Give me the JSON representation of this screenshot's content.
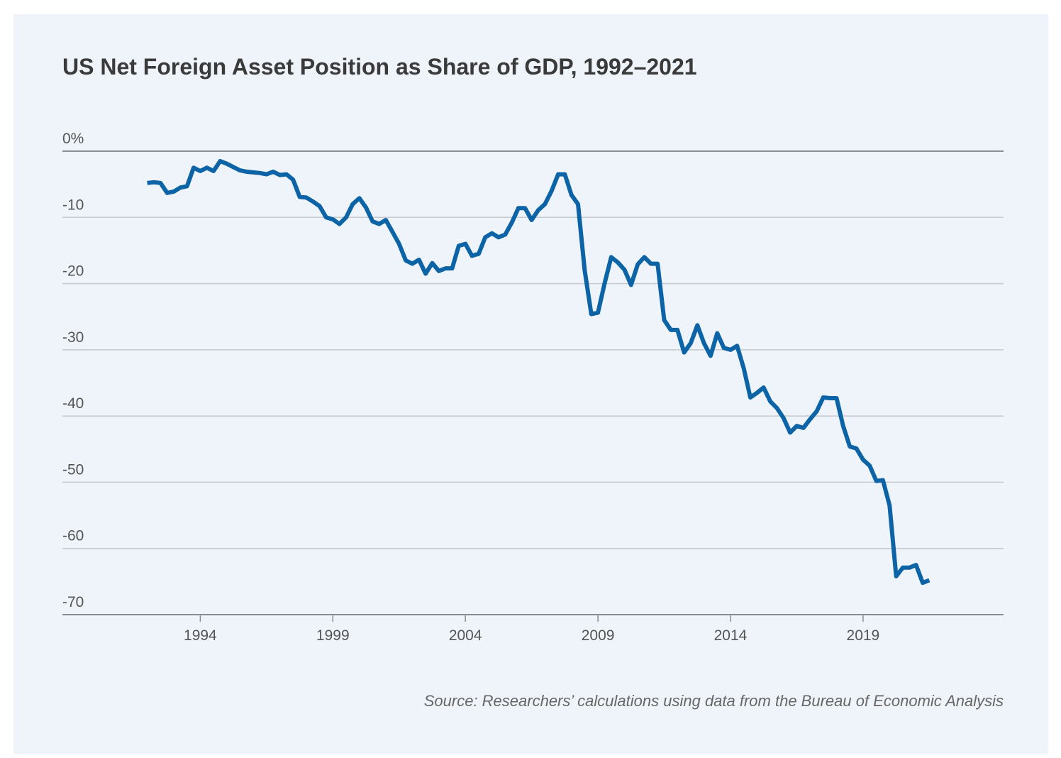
{
  "chart_data": {
    "type": "line",
    "title": "US Net Foreign Asset Position as Share of GDP, 1992–2021",
    "source": "Source: Researchers’ calculations using data from the Bureau of Economic Analysis",
    "x": [
      1992,
      1992.25,
      1992.5,
      1992.75,
      1993,
      1993.25,
      1993.5,
      1993.75,
      1994,
      1994.25,
      1994.5,
      1994.75,
      1995,
      1995.25,
      1995.5,
      1995.75,
      1996,
      1996.25,
      1996.5,
      1996.75,
      1997,
      1997.25,
      1997.5,
      1997.75,
      1998,
      1998.25,
      1998.5,
      1998.75,
      1999,
      1999.25,
      1999.5,
      1999.75,
      2000,
      2000.25,
      2000.5,
      2000.75,
      2001,
      2001.25,
      2001.5,
      2001.75,
      2002,
      2002.25,
      2002.5,
      2002.75,
      2003,
      2003.25,
      2003.5,
      2003.75,
      2004,
      2004.25,
      2004.5,
      2004.75,
      2005,
      2005.25,
      2005.5,
      2005.75,
      2006,
      2006.25,
      2006.5,
      2006.75,
      2007,
      2007.25,
      2007.5,
      2007.75,
      2008,
      2008.25,
      2008.5,
      2008.75,
      2009,
      2009.25,
      2009.5,
      2009.75,
      2010,
      2010.25,
      2010.5,
      2010.75,
      2011,
      2011.25,
      2011.5,
      2011.75,
      2012,
      2012.25,
      2012.5,
      2012.75,
      2013,
      2013.25,
      2013.5,
      2013.75,
      2014,
      2014.25,
      2014.5,
      2014.75,
      2015,
      2015.25,
      2015.5,
      2015.75,
      2016,
      2016.25,
      2016.5,
      2016.75,
      2017,
      2017.25,
      2017.5,
      2017.75,
      2018,
      2018.25,
      2018.5,
      2018.75,
      2019,
      2019.25,
      2019.5,
      2019.75,
      2020,
      2020.25,
      2020.5,
      2020.75,
      2021,
      2021.25,
      2021.5
    ],
    "series": [
      {
        "color": "#0c64a6",
        "values": [
          -4.8,
          -4.7,
          -4.8,
          -6.3,
          -6.1,
          -5.5,
          -5.3,
          -2.5,
          -3.0,
          -2.5,
          -3.0,
          -1.5,
          -1.9,
          -2.4,
          -2.9,
          -3.1,
          -3.2,
          -3.3,
          -3.5,
          -3.1,
          -3.6,
          -3.5,
          -4.3,
          -6.9,
          -7.0,
          -7.6,
          -8.3,
          -10.0,
          -10.3,
          -11.0,
          -10.0,
          -8.0,
          -7.1,
          -8.5,
          -10.6,
          -11.0,
          -10.4,
          -12.2,
          -14.0,
          -16.5,
          -17.0,
          -16.4,
          -18.5,
          -16.9,
          -18.1,
          -17.7,
          -17.7,
          -14.3,
          -14.0,
          -15.8,
          -15.5,
          -13.0,
          -12.4,
          -13.0,
          -12.6,
          -10.8,
          -8.6,
          -8.6,
          -10.4,
          -8.9,
          -8.0,
          -6.0,
          -3.5,
          -3.5,
          -6.6,
          -8.0,
          -18.0,
          -24.6,
          -24.4,
          -20.0,
          -16.0,
          -16.8,
          -17.9,
          -20.2,
          -17.1,
          -16.0,
          -17.0,
          -17.0,
          -25.5,
          -27.0,
          -27.0,
          -30.4,
          -29.0,
          -26.3,
          -29.0,
          -30.9,
          -27.5,
          -29.7,
          -30.0,
          -29.4,
          -32.8,
          -37.2,
          -36.5,
          -35.7,
          -37.8,
          -38.8,
          -40.3,
          -42.5,
          -41.5,
          -41.8,
          -40.5,
          -39.3,
          -37.2,
          -37.3,
          -37.3,
          -41.5,
          -44.6,
          -44.9,
          -46.6,
          -47.5,
          -49.8,
          -49.7,
          -53.5,
          -64.2,
          -62.9,
          -62.9,
          -62.5,
          -65.2,
          -64.8
        ]
      }
    ],
    "xlim": [
      1988.8,
      2024.3
    ],
    "xticks": [
      1994,
      1999,
      2004,
      2009,
      2014,
      2019
    ],
    "ylim": [
      -70,
      0
    ],
    "yticks": [
      {
        "value": 0,
        "label": "0%"
      },
      -10,
      -20,
      -30,
      -40,
      -50,
      -60,
      -70
    ],
    "grid": true
  }
}
